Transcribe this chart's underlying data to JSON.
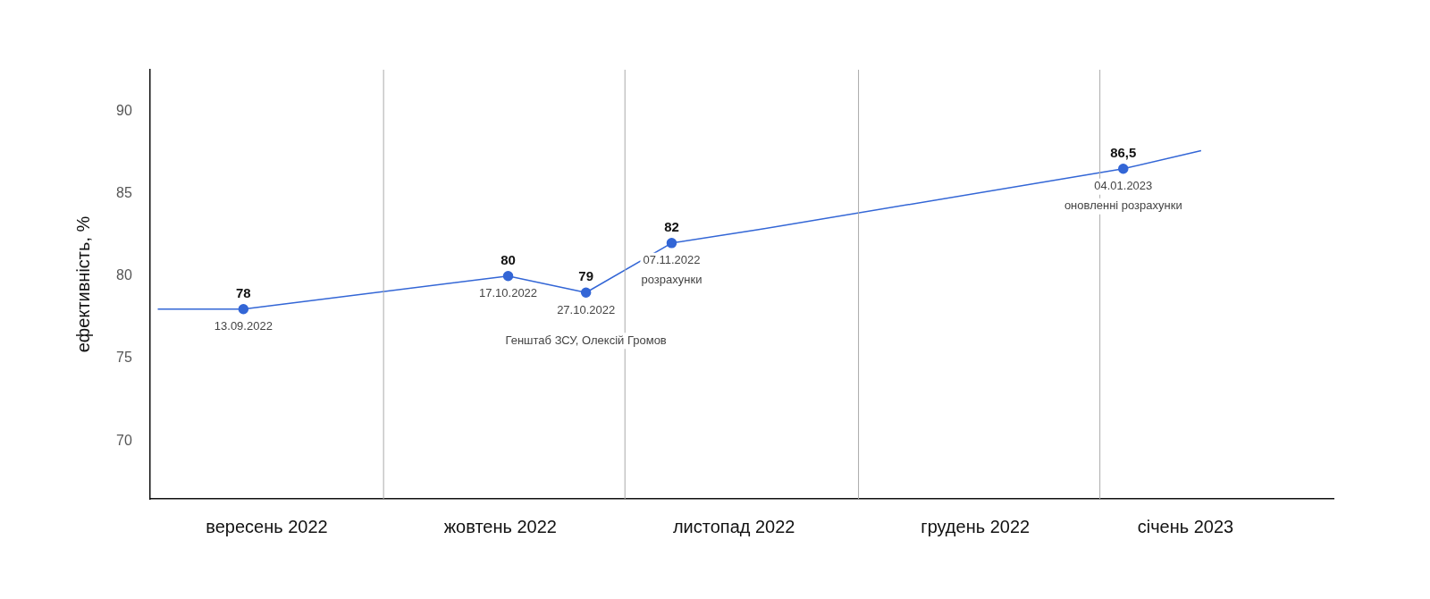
{
  "chart_data": {
    "type": "line",
    "ylabel": "ефективність, %",
    "xlim": [
      "2022-09-01",
      "2023-01-31"
    ],
    "ylim": [
      66.5,
      92.5
    ],
    "yticks": [
      70,
      75,
      80,
      85,
      90
    ],
    "xticks": [
      {
        "value": "2022-09-16",
        "label": "вересень 2022"
      },
      {
        "value": "2022-10-16",
        "label": "жовтень 2022"
      },
      {
        "value": "2022-11-15",
        "label": "листопад 2022"
      },
      {
        "value": "2022-12-16",
        "label": "грудень 2022"
      },
      {
        "value": "2023-01-12",
        "label": "січень 2023"
      }
    ],
    "grid": false,
    "legend": false,
    "line_style": "solid",
    "series": [
      {
        "color": "#3366d6",
        "marker": "none",
        "x": [
          "2022-09-02",
          "2022-09-13",
          "2022-10-17",
          "2022-10-27",
          "2022-11-07",
          "2022-11-18",
          "2023-01-04",
          "2023-01-14"
        ],
        "values": [
          78,
          78,
          80,
          79,
          82,
          82.8,
          86.5,
          87.6
        ]
      },
      {
        "type": "scatter",
        "color": "#3366d6",
        "marker": "circle",
        "x": [
          "2022-09-13",
          "2022-10-17",
          "2022-10-27",
          "2022-11-07",
          "2023-01-04"
        ],
        "values": [
          78,
          80,
          79,
          82,
          86.5
        ],
        "value_labels": [
          "78",
          "80",
          "79",
          "82",
          "86,5"
        ]
      }
    ],
    "ref_lines": [
      {
        "axis": "x",
        "value": "2022-10-01",
        "color": "#aaaaaa"
      },
      {
        "axis": "x",
        "value": "2022-11-01",
        "color": "#aaaaaa"
      },
      {
        "axis": "x",
        "value": "2022-12-01",
        "color": "#aaaaaa"
      },
      {
        "axis": "x",
        "value": "2023-01-01",
        "color": "#aaaaaa"
      }
    ],
    "annotations": [
      {
        "text": "13.09.2022",
        "x": "2022-09-13",
        "y": 78
      },
      {
        "text": "17.10.2022",
        "x": "2022-10-17",
        "y": 80
      },
      {
        "text": "27.10.2022",
        "x": "2022-10-27",
        "y": 79
      },
      {
        "text": "07.11.2022",
        "x": "2022-11-07",
        "y": 82
      },
      {
        "text": "04.01.2023",
        "x": "2023-01-04",
        "y": 86.5
      },
      "Генштаб ЗСУ, Олексій Громов",
      "розрахунки",
      "оновленні розрахунки"
    ]
  }
}
